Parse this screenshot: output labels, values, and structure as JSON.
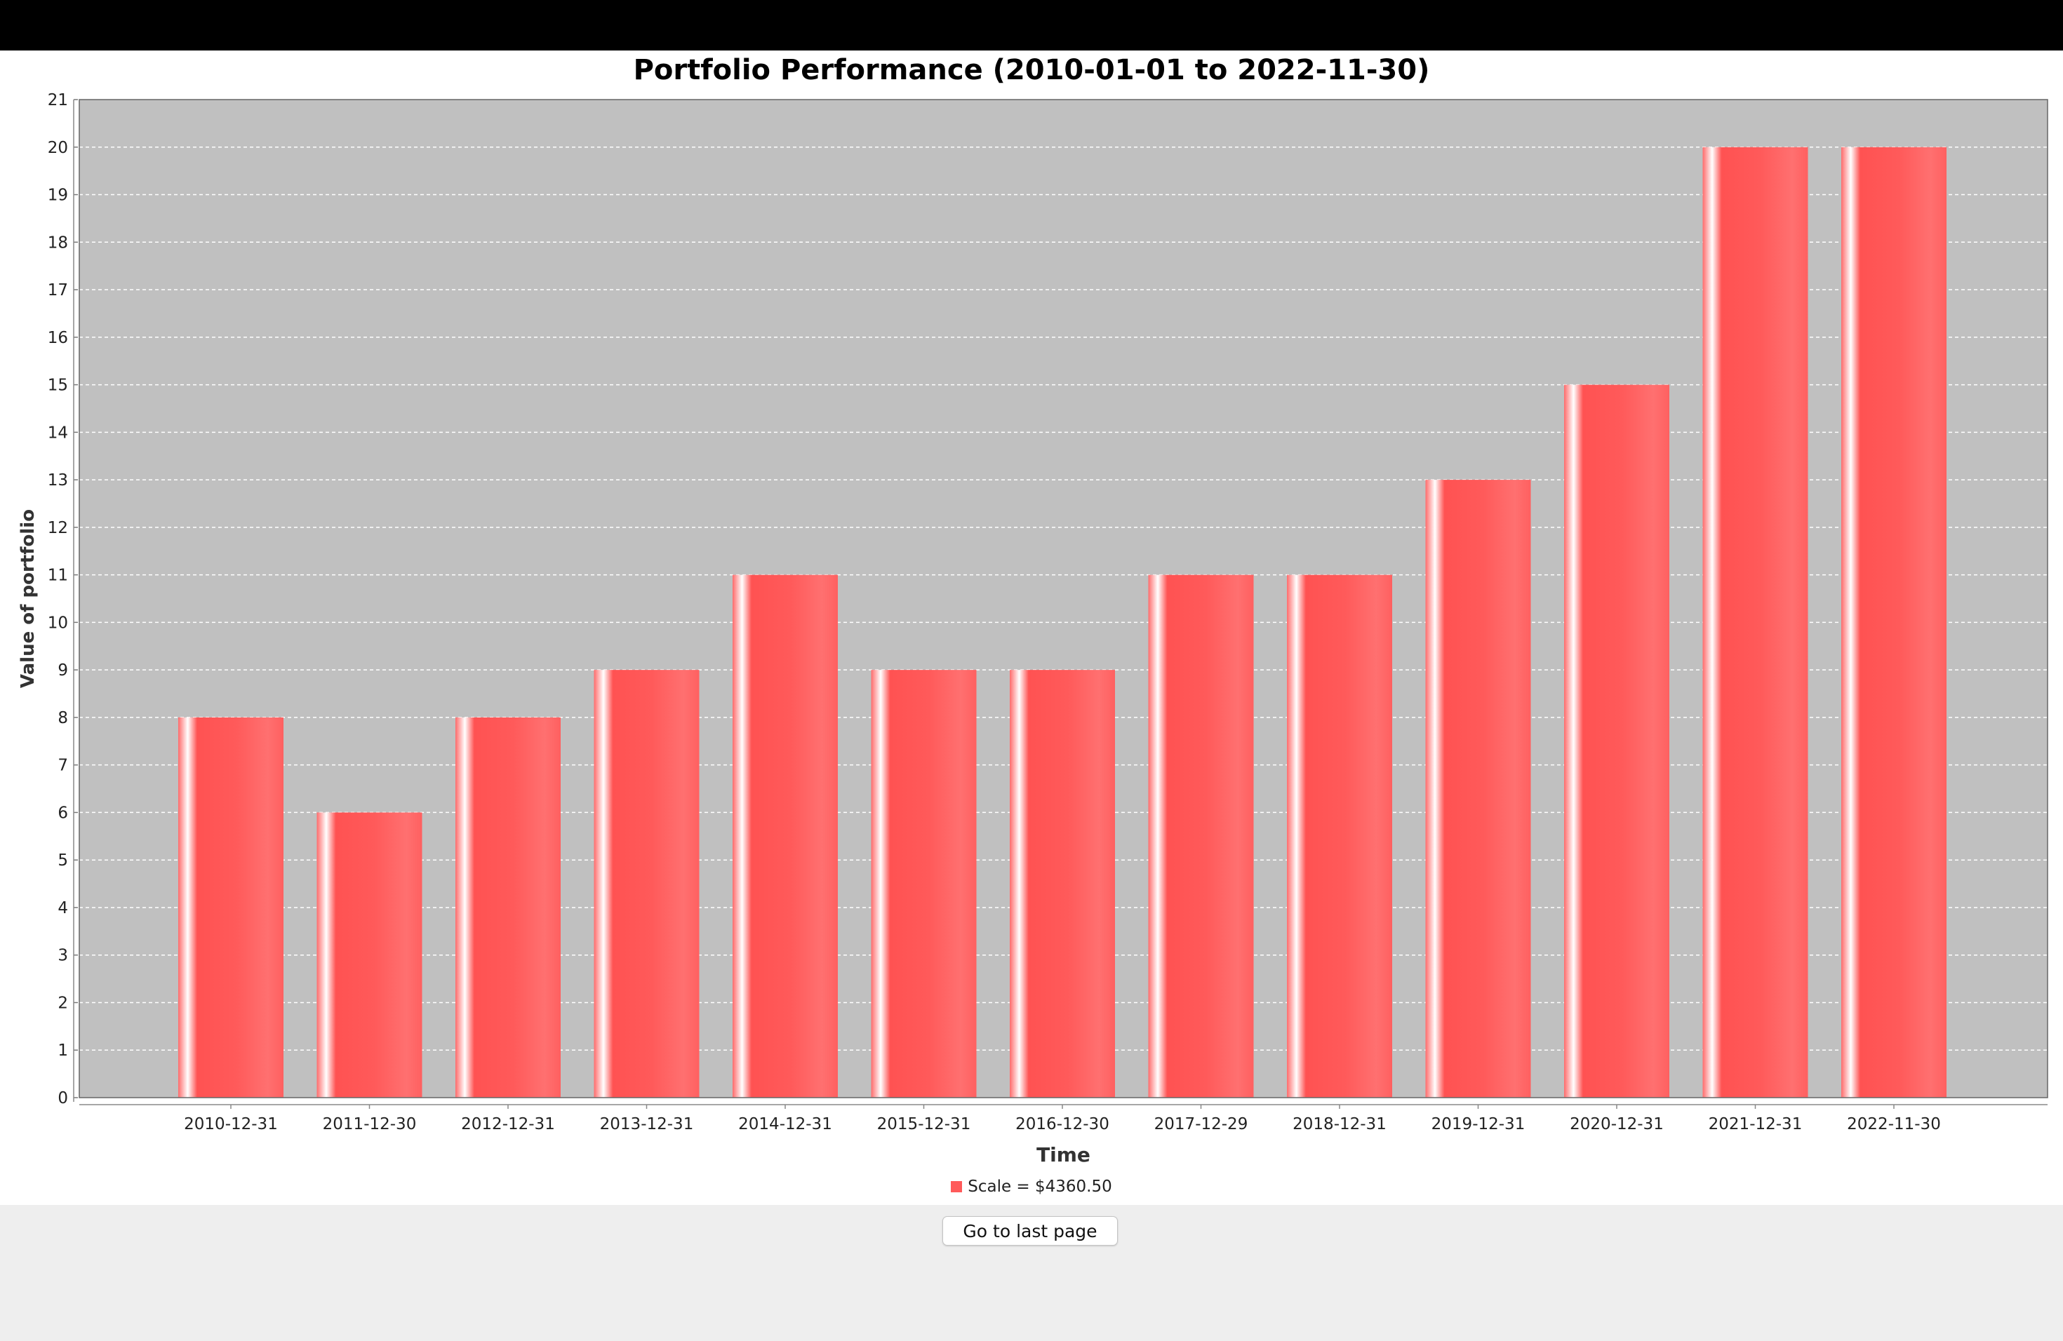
{
  "chart_data": {
    "type": "bar",
    "title": "Portfolio Performance (2010-01-01 to 2022-11-30)",
    "xlabel": "Time",
    "ylabel": "Value of portfolio",
    "categories": [
      "2010-12-31",
      "2011-12-30",
      "2012-12-31",
      "2013-12-31",
      "2014-12-31",
      "2015-12-31",
      "2016-12-30",
      "2017-12-29",
      "2018-12-31",
      "2019-12-31",
      "2020-12-31",
      "2021-12-31",
      "2022-11-30"
    ],
    "series": [
      {
        "name": "Scale = $4360.50",
        "values": [
          8,
          6,
          8,
          9,
          11,
          9,
          9,
          11,
          11,
          13,
          15,
          20,
          20
        ]
      }
    ],
    "ylim": [
      0,
      21
    ],
    "yticks": [
      0,
      1,
      2,
      3,
      4,
      5,
      6,
      7,
      8,
      9,
      10,
      11,
      12,
      13,
      14,
      15,
      16,
      17,
      18,
      19,
      20,
      21
    ],
    "grid": true,
    "legend_position": "bottom",
    "colors": {
      "bar": "#ff5a5a",
      "plot_background": "#c0c0c0",
      "gridline": "#ffffff"
    }
  },
  "controls": {
    "last_page_label": "Go to last page"
  }
}
